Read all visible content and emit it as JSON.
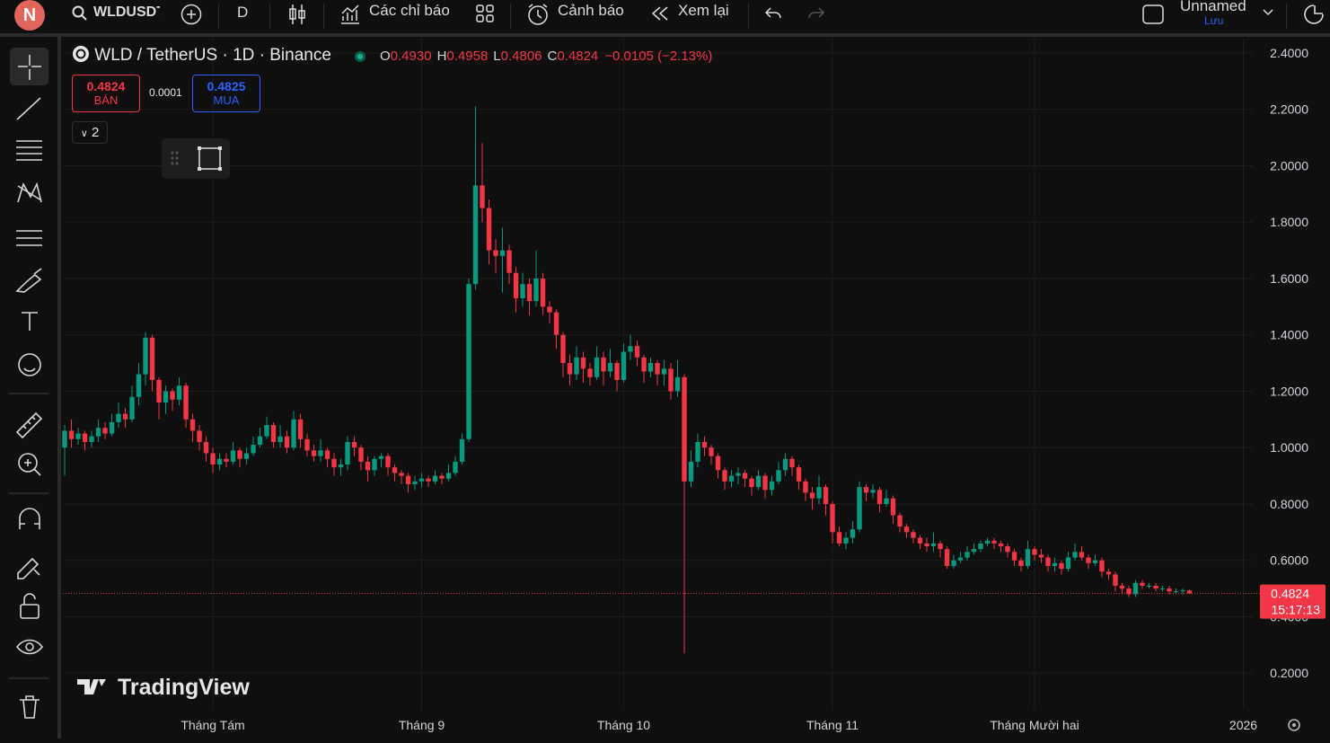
{
  "toolbar": {
    "avatar": "N",
    "symbol": "WLDUSDT",
    "interval": "D",
    "indicators": "Các chỉ báo",
    "alerts": "Cảnh báo",
    "replay": "Xem lại",
    "layout_name": "Unnamed",
    "save": "Lưu"
  },
  "legend": {
    "symbol": "WLD / TetherUS · 1D · Binance",
    "ohlc": [
      {
        "k": "O",
        "v": "0.4930"
      },
      {
        "k": "H",
        "v": "0.4958"
      },
      {
        "k": "L",
        "v": "0.4806"
      },
      {
        "k": "C",
        "v": "0.4824"
      }
    ],
    "change": "−0.0105 (−2.13%)"
  },
  "trade": {
    "sell_price": "0.4824",
    "sell": "BÁN",
    "spread": "0.0001",
    "buy_price": "0.4825",
    "buy": "MUA",
    "indicators_count": "2"
  },
  "watermark": "TradingView",
  "chart_data": {
    "type": "candlestick",
    "up_color": "#089981",
    "down_color": "#f23645",
    "grid": true,
    "xlim": [
      -0.27,
      176.4
    ],
    "ylim": [
      0.07,
      2.454
    ],
    "xticks": [
      {
        "value": 22,
        "label": "Tháng Tám"
      },
      {
        "value": 53,
        "label": "Tháng 9"
      },
      {
        "value": 83,
        "label": "Tháng 10"
      },
      {
        "value": 114,
        "label": "Tháng 11"
      },
      {
        "value": 144,
        "label": "Tháng Mười hai"
      },
      {
        "value": 175,
        "label": "2026"
      }
    ],
    "yticks": [
      {
        "value": 0.2,
        "label": "0.2000"
      },
      {
        "value": 0.4,
        "label": "0.4000"
      },
      {
        "value": 0.6,
        "label": "0.6000"
      },
      {
        "value": 0.8,
        "label": "0.8000"
      },
      {
        "value": 1.0,
        "label": "1.0000"
      },
      {
        "value": 1.2,
        "label": "1.2000"
      },
      {
        "value": 1.4,
        "label": "1.4000"
      },
      {
        "value": 1.6,
        "label": "1.6000"
      },
      {
        "value": 1.8,
        "label": "1.8000"
      },
      {
        "value": 2.0,
        "label": "2.0000"
      },
      {
        "value": 2.2,
        "label": "2.2000"
      },
      {
        "value": 2.4,
        "label": "2.4000"
      }
    ],
    "last_price": {
      "value": 0.4824,
      "countdown": "15:17:13",
      "color": "#f23645"
    },
    "candles": {
      "open": [
        1.0,
        1.06,
        1.03,
        1.05,
        1.02,
        1.04,
        1.07,
        1.05,
        1.09,
        1.12,
        1.1,
        1.18,
        1.26,
        1.39,
        1.24,
        1.16,
        1.2,
        1.17,
        1.22,
        1.1,
        1.06,
        1.02,
        0.98,
        0.94,
        0.96,
        0.95,
        0.99,
        0.96,
        0.98,
        1.01,
        1.04,
        1.08,
        1.02,
        1.04,
        1.0,
        1.1,
        1.03,
        0.99,
        0.97,
        0.99,
        0.96,
        0.93,
        0.94,
        1.02,
        1.0,
        0.95,
        0.92,
        0.96,
        0.97,
        0.93,
        0.91,
        0.9,
        0.87,
        0.88,
        0.89,
        0.88,
        0.9,
        0.89,
        0.91,
        0.95,
        1.03,
        1.58,
        1.93,
        1.85,
        1.7,
        1.68,
        1.7,
        1.62,
        1.53,
        1.58,
        1.52,
        1.6,
        1.5,
        1.48,
        1.4,
        1.3,
        1.26,
        1.32,
        1.28,
        1.25,
        1.32,
        1.27,
        1.3,
        1.24,
        1.34,
        1.36,
        1.32,
        1.27,
        1.3,
        1.26,
        1.28,
        1.2,
        1.25,
        0.88,
        0.95,
        1.02,
        1.0,
        0.97,
        0.92,
        0.88,
        0.9,
        0.91,
        0.89,
        0.86,
        0.9,
        0.85,
        0.88,
        0.92,
        0.96,
        0.93,
        0.88,
        0.84,
        0.82,
        0.86,
        0.8,
        0.7,
        0.66,
        0.68,
        0.71,
        0.86,
        0.84,
        0.85,
        0.8,
        0.82,
        0.76,
        0.72,
        0.7,
        0.68,
        0.66,
        0.65,
        0.66,
        0.64,
        0.58,
        0.6,
        0.61,
        0.63,
        0.64,
        0.66,
        0.67,
        0.66,
        0.65,
        0.63,
        0.6,
        0.58,
        0.64,
        0.62,
        0.61,
        0.58,
        0.59,
        0.57,
        0.61,
        0.63,
        0.61,
        0.59,
        0.6,
        0.56,
        0.55,
        0.51,
        0.5,
        0.48,
        0.52,
        0.51,
        0.51,
        0.5,
        0.5,
        0.49,
        0.49,
        0.493
      ],
      "high": [
        1.08,
        1.1,
        1.07,
        1.06,
        1.06,
        1.1,
        1.09,
        1.12,
        1.16,
        1.14,
        1.22,
        1.3,
        1.41,
        1.4,
        1.25,
        1.22,
        1.21,
        1.25,
        1.23,
        1.12,
        1.08,
        1.04,
        1.0,
        0.98,
        0.98,
        1.02,
        1.0,
        1.0,
        1.04,
        1.07,
        1.11,
        1.09,
        1.08,
        1.06,
        1.13,
        1.12,
        1.05,
        1.01,
        1.03,
        1.0,
        0.98,
        0.96,
        1.04,
        1.04,
        1.01,
        0.97,
        0.97,
        0.98,
        0.98,
        0.94,
        0.92,
        0.91,
        0.9,
        0.91,
        0.9,
        0.92,
        0.91,
        0.94,
        0.97,
        1.05,
        1.6,
        2.21,
        2.08,
        1.88,
        1.74,
        1.78,
        1.72,
        1.64,
        1.62,
        1.6,
        1.7,
        1.62,
        1.52,
        1.49,
        1.41,
        1.33,
        1.36,
        1.34,
        1.3,
        1.36,
        1.34,
        1.35,
        1.31,
        1.37,
        1.4,
        1.38,
        1.33,
        1.32,
        1.31,
        1.31,
        1.3,
        1.31,
        1.26,
        0.99,
        1.05,
        1.04,
        1.01,
        0.98,
        0.93,
        0.92,
        0.93,
        0.92,
        0.9,
        0.92,
        0.91,
        0.9,
        0.95,
        0.98,
        0.97,
        0.94,
        0.89,
        0.86,
        0.9,
        0.87,
        0.81,
        0.72,
        0.7,
        0.74,
        0.88,
        0.87,
        0.87,
        0.86,
        0.85,
        0.83,
        0.77,
        0.73,
        0.71,
        0.69,
        0.68,
        0.7,
        0.67,
        0.65,
        0.62,
        0.63,
        0.65,
        0.66,
        0.67,
        0.68,
        0.68,
        0.67,
        0.66,
        0.64,
        0.61,
        0.67,
        0.65,
        0.64,
        0.62,
        0.61,
        0.6,
        0.63,
        0.66,
        0.65,
        0.62,
        0.62,
        0.61,
        0.57,
        0.56,
        0.52,
        0.51,
        0.53,
        0.53,
        0.52,
        0.52,
        0.51,
        0.51,
        0.5,
        0.5,
        0.4958
      ],
      "low": [
        0.9,
        1.0,
        1.01,
        0.99,
        1.0,
        1.02,
        1.03,
        1.04,
        1.07,
        1.07,
        1.09,
        1.15,
        1.22,
        1.2,
        1.1,
        1.12,
        1.13,
        1.15,
        1.07,
        1.02,
        0.99,
        0.95,
        0.91,
        0.92,
        0.93,
        0.94,
        0.93,
        0.94,
        0.97,
        1.0,
        1.03,
        1.0,
        1.0,
        0.98,
        0.99,
        1.0,
        0.97,
        0.95,
        0.95,
        0.93,
        0.9,
        0.9,
        0.92,
        0.97,
        0.92,
        0.88,
        0.9,
        0.93,
        0.9,
        0.88,
        0.87,
        0.84,
        0.85,
        0.86,
        0.86,
        0.87,
        0.87,
        0.88,
        0.9,
        0.94,
        1.02,
        1.56,
        1.8,
        1.65,
        1.62,
        1.55,
        1.58,
        1.48,
        1.5,
        1.47,
        1.5,
        1.47,
        1.44,
        1.35,
        1.25,
        1.22,
        1.24,
        1.23,
        1.22,
        1.24,
        1.22,
        1.25,
        1.2,
        1.23,
        1.31,
        1.29,
        1.23,
        1.25,
        1.22,
        1.22,
        1.17,
        1.18,
        0.27,
        0.86,
        0.93,
        0.97,
        0.94,
        0.89,
        0.85,
        0.86,
        0.87,
        0.86,
        0.83,
        0.85,
        0.82,
        0.83,
        0.87,
        0.9,
        0.9,
        0.85,
        0.81,
        0.78,
        0.8,
        0.76,
        0.66,
        0.65,
        0.64,
        0.66,
        0.7,
        0.81,
        0.82,
        0.77,
        0.79,
        0.73,
        0.7,
        0.68,
        0.66,
        0.64,
        0.63,
        0.63,
        0.61,
        0.57,
        0.57,
        0.59,
        0.6,
        0.62,
        0.63,
        0.65,
        0.64,
        0.63,
        0.61,
        0.58,
        0.56,
        0.57,
        0.6,
        0.59,
        0.56,
        0.56,
        0.55,
        0.56,
        0.6,
        0.6,
        0.57,
        0.58,
        0.54,
        0.53,
        0.49,
        0.48,
        0.47,
        0.47,
        0.5,
        0.5,
        0.49,
        0.49,
        0.48,
        0.48,
        0.48,
        0.4806
      ],
      "close": [
        1.06,
        1.03,
        1.05,
        1.02,
        1.04,
        1.07,
        1.05,
        1.09,
        1.12,
        1.1,
        1.18,
        1.26,
        1.39,
        1.24,
        1.16,
        1.2,
        1.17,
        1.22,
        1.1,
        1.06,
        1.02,
        0.98,
        0.94,
        0.96,
        0.95,
        0.99,
        0.96,
        0.98,
        1.01,
        1.04,
        1.08,
        1.02,
        1.04,
        1.0,
        1.1,
        1.03,
        0.99,
        0.97,
        0.99,
        0.96,
        0.93,
        0.94,
        1.02,
        1.0,
        0.95,
        0.92,
        0.96,
        0.97,
        0.93,
        0.91,
        0.9,
        0.87,
        0.88,
        0.89,
        0.88,
        0.9,
        0.89,
        0.91,
        0.95,
        1.03,
        1.58,
        1.93,
        1.85,
        1.7,
        1.68,
        1.7,
        1.62,
        1.53,
        1.58,
        1.52,
        1.6,
        1.5,
        1.48,
        1.4,
        1.3,
        1.26,
        1.32,
        1.28,
        1.25,
        1.32,
        1.27,
        1.3,
        1.24,
        1.34,
        1.36,
        1.32,
        1.27,
        1.3,
        1.26,
        1.28,
        1.2,
        1.25,
        0.88,
        0.95,
        1.02,
        1.0,
        0.97,
        0.92,
        0.88,
        0.9,
        0.91,
        0.89,
        0.86,
        0.9,
        0.85,
        0.88,
        0.92,
        0.96,
        0.93,
        0.88,
        0.84,
        0.82,
        0.86,
        0.8,
        0.7,
        0.66,
        0.68,
        0.71,
        0.86,
        0.84,
        0.85,
        0.8,
        0.82,
        0.76,
        0.72,
        0.7,
        0.68,
        0.66,
        0.65,
        0.66,
        0.64,
        0.58,
        0.6,
        0.61,
        0.63,
        0.64,
        0.66,
        0.67,
        0.66,
        0.65,
        0.63,
        0.6,
        0.58,
        0.64,
        0.62,
        0.61,
        0.58,
        0.59,
        0.57,
        0.61,
        0.63,
        0.61,
        0.59,
        0.6,
        0.56,
        0.55,
        0.51,
        0.5,
        0.48,
        0.52,
        0.51,
        0.51,
        0.5,
        0.5,
        0.49,
        0.49,
        0.493,
        0.4824
      ]
    }
  }
}
